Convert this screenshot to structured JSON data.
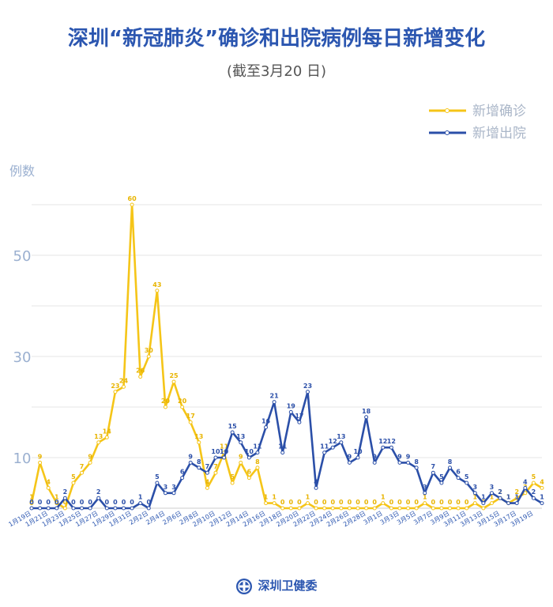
{
  "header": {
    "title": "深圳“新冠肺炎”确诊和出院病例每日新增变化",
    "subtitle": "(截至3月20 日)"
  },
  "footer": {
    "org": "深圳卫健委",
    "logo_icon": "health-commission-logo-icon"
  },
  "colors": {
    "confirmed": "#f5c518",
    "discharged": "#2b4fa8",
    "axis_text": "#9bb0d0",
    "grid": "#e6e6e6"
  },
  "chart_data": {
    "type": "line",
    "ylabel": "例数",
    "ylim": [
      0,
      65
    ],
    "yticks": [
      10,
      30,
      50
    ],
    "legend_position": "top-right",
    "grid": true,
    "x": [
      "1月19日",
      "1月20日",
      "1月21日",
      "1月22日",
      "1月23日",
      "1月24日",
      "1月25日",
      "1月26日",
      "1月27日",
      "1月28日",
      "1月29日",
      "1月30日",
      "1月31日",
      "2月1日",
      "2月2日",
      "2月3日",
      "2月4日",
      "2月5日",
      "2月6日",
      "2月7日",
      "2月8日",
      "2月9日",
      "2月10日",
      "2月11日",
      "2月12日",
      "2月13日",
      "2月14日",
      "2月15日",
      "2月16日",
      "2月17日",
      "2月18日",
      "2月19日",
      "2月20日",
      "2月21日",
      "2月22日",
      "2月23日",
      "2月24日",
      "2月25日",
      "2月26日",
      "2月27日",
      "2月28日",
      "2月29日",
      "3月1日",
      "3月2日",
      "3月3日",
      "3月4日",
      "3月5日",
      "3月6日",
      "3月7日",
      "3月8日",
      "3月9日",
      "3月10日",
      "3月11日",
      "3月12日",
      "3月13日",
      "3月14日",
      "3月15日",
      "3月16日",
      "3月17日",
      "3月18日",
      "3月19日",
      "3月20日"
    ],
    "xtick_labels": [
      "1月19日",
      "1月21日",
      "1月23日",
      "1月25日",
      "1月27日",
      "1月29日",
      "1月31日",
      "2月2日",
      "2月4日",
      "2月6日",
      "2月8日",
      "2月10日",
      "2月12日",
      "2月14日",
      "2月16日",
      "2月18日",
      "2月20日",
      "2月22日",
      "2月24日",
      "2月26日",
      "2月28日",
      "3月1日",
      "3月3日",
      "3月5日",
      "3月7日",
      "3月9日",
      "3月11日",
      "3月13日",
      "3月15日",
      "3月17日",
      "3月19日"
    ],
    "series": [
      {
        "name": "新增确诊",
        "values": [
          1,
          9,
          4,
          1,
          0,
          5,
          7,
          9,
          13,
          14,
          23,
          24,
          60,
          26,
          30,
          43,
          20,
          25,
          20,
          17,
          13,
          4,
          7,
          11,
          5,
          9,
          6,
          8,
          1,
          1,
          0,
          0,
          0,
          1,
          0,
          0,
          0,
          0,
          0,
          0,
          0,
          0,
          1,
          0,
          0,
          0,
          0,
          1,
          0,
          0,
          0,
          0,
          0,
          1,
          0,
          1,
          2,
          1,
          2,
          3,
          5,
          4
        ]
      },
      {
        "name": "新增出院",
        "values": [
          0,
          0,
          0,
          0,
          2,
          0,
          0,
          0,
          2,
          0,
          0,
          0,
          0,
          1,
          0,
          5,
          3,
          3,
          6,
          9,
          8,
          7,
          10,
          10,
          15,
          13,
          10,
          11,
          16,
          21,
          11,
          19,
          17,
          23,
          4,
          11,
          12,
          13,
          9,
          10,
          18,
          9,
          12,
          12,
          9,
          9,
          8,
          3,
          7,
          5,
          8,
          6,
          5,
          3,
          1,
          3,
          2,
          1,
          1,
          4,
          2,
          1
        ]
      }
    ]
  }
}
